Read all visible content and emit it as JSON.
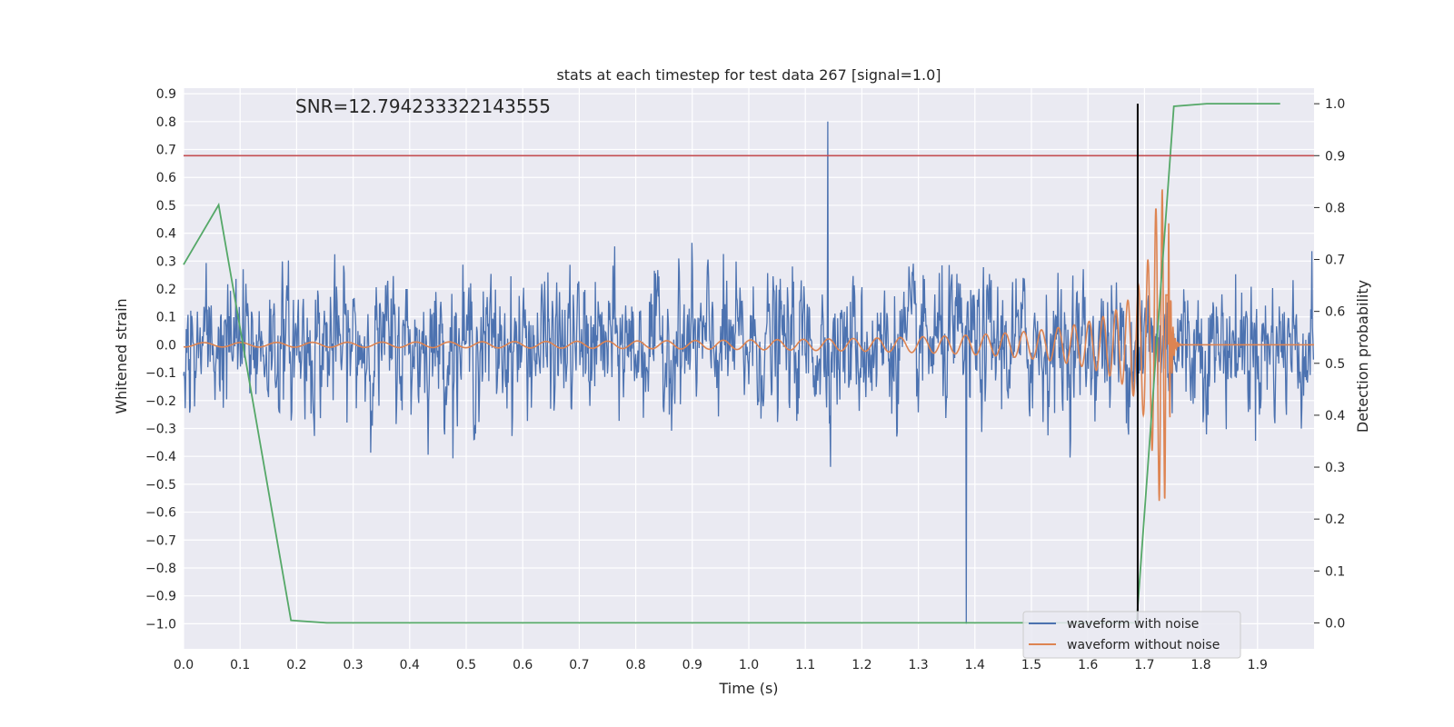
{
  "chart_data": {
    "type": "line",
    "title": "stats at each timestep for test data 267 [signal=1.0]",
    "annotation": "SNR=12.794233322143555",
    "xlabel": "Time (s)",
    "ylabel": "Whitened strain",
    "y2label": "Detection probability",
    "xlim": [
      0.0,
      2.0
    ],
    "ylim": [
      -1.09,
      0.92
    ],
    "y2lim": [
      -0.05,
      1.03
    ],
    "x_ticks": [
      "0.0",
      "0.1",
      "0.2",
      "0.3",
      "0.4",
      "0.5",
      "0.6",
      "0.7",
      "0.8",
      "0.9",
      "1.0",
      "1.1",
      "1.2",
      "1.3",
      "1.4",
      "1.5",
      "1.6",
      "1.7",
      "1.8",
      "1.9"
    ],
    "y_ticks": [
      "0.9",
      "0.8",
      "0.7",
      "0.6",
      "0.5",
      "0.4",
      "0.3",
      "0.2",
      "0.1",
      "0.0",
      "−0.1",
      "−0.2",
      "−0.3",
      "−0.4",
      "−0.5",
      "−0.6",
      "−0.7",
      "−0.8",
      "−0.9",
      "−1.0"
    ],
    "y2_ticks": [
      "1.0",
      "0.9",
      "0.8",
      "0.7",
      "0.6",
      "0.5",
      "0.4",
      "0.3",
      "0.2",
      "0.1",
      "0.0"
    ],
    "grid": true,
    "legend_position": "lower-right",
    "series": [
      {
        "name": "waveform with noise",
        "color": "#4c72b0",
        "kind": "noisy-strain",
        "std": 0.17,
        "range": [
          -1.0,
          0.8
        ],
        "peak": {
          "x": 1.14,
          "y": 0.8
        },
        "trough": {
          "x": 1.385,
          "y": -1.0
        }
      },
      {
        "name": "waveform without noise",
        "color": "#dd8452",
        "kind": "chirp",
        "merger_x": 1.742,
        "peak_amplitude": 0.56
      },
      {
        "name": "",
        "color": "#55a868",
        "axis": "right",
        "x": [
          0.0,
          0.062,
          0.19,
          0.253,
          1.686,
          1.752,
          1.81,
          1.94
        ],
        "y": [
          0.69,
          0.805,
          0.005,
          0.0,
          0.0,
          0.995,
          1.0,
          1.0
        ]
      }
    ],
    "hlines": [
      {
        "axis": "right",
        "y": 0.9,
        "color": "#c44e52"
      }
    ],
    "vlines": [
      {
        "x": 1.688,
        "y2_from": 0.0,
        "y2_to": 1.0,
        "color": "#000000"
      }
    ]
  }
}
